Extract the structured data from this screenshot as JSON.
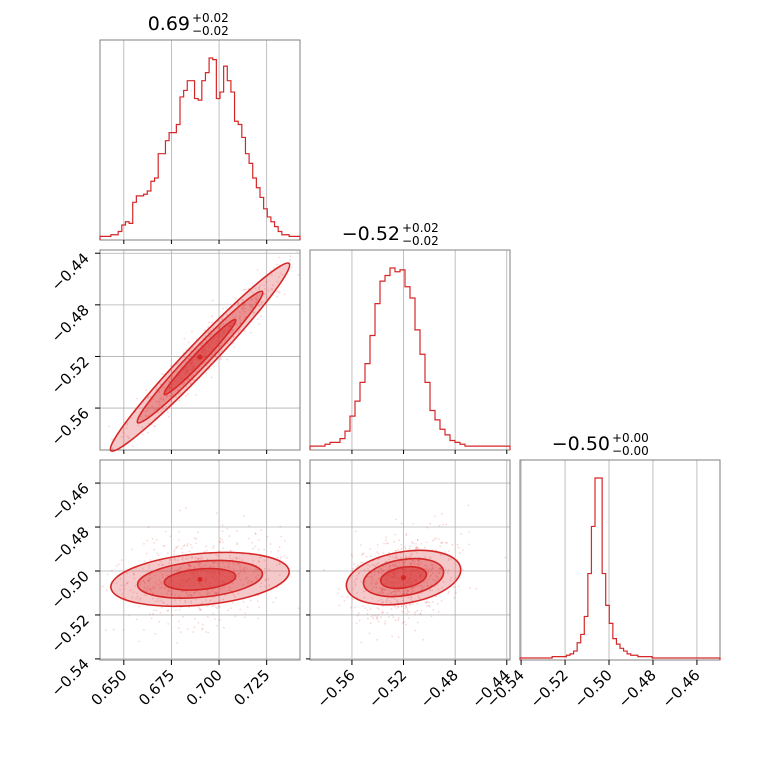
{
  "chart_data": {
    "type": "corner",
    "style": {
      "color": "#d62728",
      "grid": true
    },
    "parameters": [
      {
        "median": 0.69,
        "upper": 0.02,
        "lower": 0.02,
        "title": {
          "main": "0.69",
          "sup": "+0.02",
          "sub": "−0.02"
        }
      },
      {
        "median": -0.52,
        "upper": 0.02,
        "lower": 0.02,
        "title": {
          "main": "−0.52",
          "sup": "+0.02",
          "sub": "−0.02"
        }
      },
      {
        "median": -0.5,
        "upper": 0.0,
        "lower": 0.0,
        "title": {
          "main": "−0.50",
          "sup": "+0.00",
          "sub": "−0.00"
        }
      }
    ],
    "ranges": [
      [
        0.6375,
        0.7425
      ],
      [
        -0.5925,
        -0.4375
      ],
      [
        -0.5405,
        -0.4495
      ]
    ],
    "ticks": [
      [
        0.65,
        0.675,
        0.7,
        0.725
      ],
      [
        -0.56,
        -0.52,
        -0.48,
        -0.44
      ],
      [
        -0.54,
        -0.52,
        -0.5,
        -0.48,
        -0.46
      ]
    ],
    "tick_labels": [
      [
        "0.650",
        "0.675",
        "0.700",
        "0.725"
      ],
      [
        "−0.56",
        "−0.52",
        "−0.48",
        "−0.44"
      ],
      [
        "−0.54",
        "−0.52",
        "−0.50",
        "−0.48",
        "−0.46"
      ]
    ],
    "y_tick_labels": [
      [],
      [
        "−0.44",
        "−0.48",
        "−0.52",
        "−0.56"
      ],
      [
        "−0.46",
        "−0.48",
        "−0.50",
        "−0.52",
        "−0.54"
      ]
    ],
    "y_ticks": [
      [],
      [
        -0.44,
        -0.48,
        -0.52,
        -0.56
      ],
      [
        -0.46,
        -0.48,
        -0.5,
        -0.52,
        -0.54
      ]
    ],
    "histograms": [
      {
        "counts": [
          1,
          1,
          1,
          2,
          2,
          4,
          8,
          10,
          9,
          22,
          26,
          26,
          27,
          29,
          35,
          37,
          52,
          52,
          60,
          65,
          65,
          70,
          87,
          91,
          97,
          97,
          86,
          85,
          97,
          102,
          111,
          110,
          86,
          90,
          106,
          97,
          90,
          72,
          70,
          62,
          52,
          46,
          37,
          31,
          25,
          18,
          13,
          10,
          7,
          4,
          2,
          2,
          1,
          1,
          1
        ]
      },
      {
        "counts": [
          1,
          1,
          1,
          2,
          3,
          3,
          5,
          9,
          17,
          25,
          35,
          45,
          60,
          77,
          89,
          92,
          96,
          94,
          95,
          86,
          80,
          63,
          50,
          35,
          20,
          15,
          10,
          7,
          4,
          3,
          2,
          1,
          1,
          1,
          1,
          1,
          1,
          1,
          1,
          1
        ]
      },
      {
        "counts": [
          0,
          0,
          0,
          0,
          0,
          0,
          0,
          0,
          0,
          1,
          1,
          1,
          1,
          2,
          3,
          5,
          11,
          17,
          30,
          61,
          95,
          130,
          130,
          61,
          38,
          25,
          14,
          10,
          7,
          5,
          3,
          2,
          2,
          1,
          1,
          1,
          1,
          0,
          0,
          0,
          0,
          0,
          0,
          0,
          0,
          0,
          0,
          0,
          0,
          0,
          0,
          0,
          0,
          0,
          0,
          0
        ]
      }
    ],
    "pairs": [
      {
        "x_param": 0,
        "y_param": 1,
        "slope": 1.55,
        "intercept": -1.59,
        "spread_x": 0.018,
        "spread_perp": 0.004
      },
      {
        "x_param": 0,
        "y_param": 2,
        "slope": 0.08,
        "intercept": -0.559,
        "spread_x": 0.018,
        "spread_perp": 0.0045
      },
      {
        "x_param": 1,
        "y_param": 2,
        "slope": 0.1,
        "intercept": -0.451,
        "spread_x": 0.017,
        "spread_perp": 0.0045
      }
    ]
  }
}
